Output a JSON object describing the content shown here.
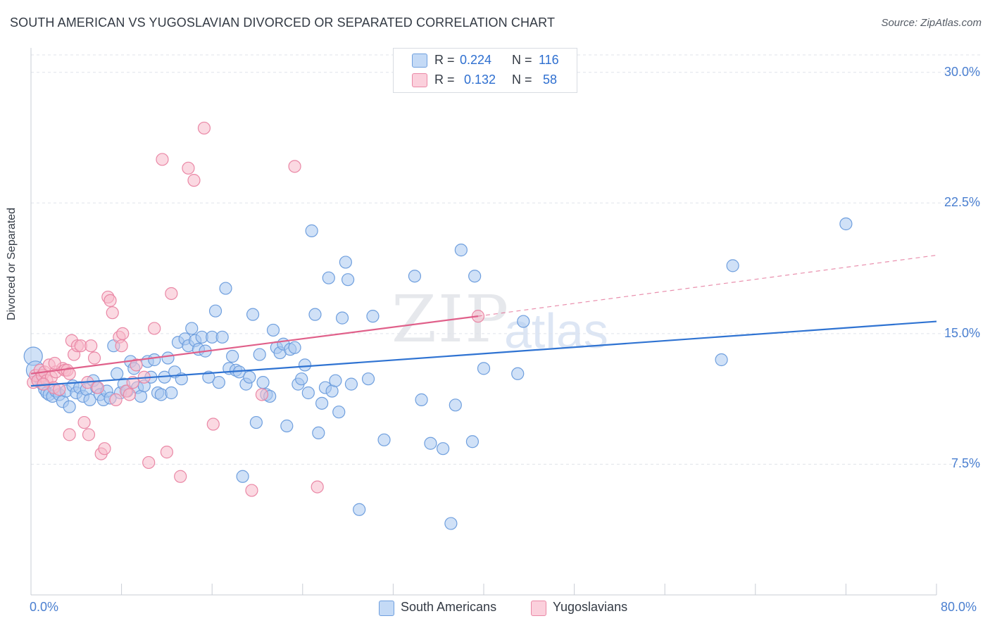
{
  "header": {
    "title": "SOUTH AMERICAN VS YUGOSLAVIAN DIVORCED OR SEPARATED CORRELATION CHART",
    "source": "Source: ZipAtlas.com"
  },
  "watermark": {
    "zip": "ZIP",
    "atlas": "atlas"
  },
  "colors": {
    "blue_fill": "#aac8f0",
    "blue_stroke": "#6f9fde",
    "blue_line": "#2f73d2",
    "pink_fill": "#f7b9cb",
    "pink_stroke": "#ea88a6",
    "pink_line": "#e0608a",
    "tick_text": "#4a7fd0",
    "grid": "#dfe3ea"
  },
  "legend": {
    "rows": [
      {
        "r_label": "R =",
        "r_value": "0.224",
        "n_label": "N =",
        "n_value": "116"
      },
      {
        "r_label": "R =",
        "r_value": "0.132",
        "n_label": "N =",
        "n_value": "58"
      }
    ],
    "bottom": [
      "South Americans",
      "Yugoslavians"
    ]
  },
  "chart_data": {
    "type": "scatter",
    "title": "SOUTH AMERICAN VS YUGOSLAVIAN DIVORCED OR SEPARATED CORRELATION CHART",
    "ylabel": "Divorced or Separated",
    "xlabel": "",
    "xlim": [
      0,
      80
    ],
    "ylim": [
      0,
      31
    ],
    "x_ticks": [
      "0.0%",
      "80.0%"
    ],
    "y_ticks": [
      {
        "value": 7.5,
        "label": "7.5%"
      },
      {
        "value": 15.0,
        "label": "15.0%"
      },
      {
        "value": 22.5,
        "label": "22.5%"
      },
      {
        "value": 30.0,
        "label": "30.0%"
      }
    ],
    "grid": "horizontal dashed",
    "legend_position": "top-center",
    "series": [
      {
        "name": "South Americans",
        "color": "#aac8f0",
        "r": 0.224,
        "n": 116,
        "trend": {
          "x": [
            0,
            80
          ],
          "y": [
            12.0,
            15.7
          ],
          "style": "solid"
        },
        "points": [
          [
            0.2,
            13.7
          ],
          [
            0.4,
            12.9
          ],
          [
            0.6,
            12.3
          ],
          [
            0.8,
            12.4
          ],
          [
            1.0,
            12.1
          ],
          [
            1.2,
            11.8
          ],
          [
            1.4,
            11.6
          ],
          [
            1.6,
            11.5
          ],
          [
            1.9,
            11.4
          ],
          [
            2.2,
            11.7
          ],
          [
            2.5,
            11.5
          ],
          [
            2.8,
            11.1
          ],
          [
            3.1,
            11.7
          ],
          [
            3.4,
            10.8
          ],
          [
            3.7,
            12.0
          ],
          [
            4.0,
            11.6
          ],
          [
            4.3,
            11.9
          ],
          [
            4.6,
            11.4
          ],
          [
            4.9,
            11.8
          ],
          [
            5.2,
            11.2
          ],
          [
            5.5,
            12.3
          ],
          [
            5.8,
            11.9
          ],
          [
            6.1,
            11.5
          ],
          [
            6.4,
            11.2
          ],
          [
            6.7,
            11.7
          ],
          [
            7.0,
            11.3
          ],
          [
            7.3,
            14.3
          ],
          [
            7.6,
            12.7
          ],
          [
            7.9,
            11.6
          ],
          [
            8.2,
            12.1
          ],
          [
            8.5,
            11.7
          ],
          [
            8.8,
            13.4
          ],
          [
            9.1,
            13.0
          ],
          [
            9.4,
            11.9
          ],
          [
            9.7,
            11.4
          ],
          [
            10.0,
            12.0
          ],
          [
            10.3,
            13.4
          ],
          [
            10.6,
            12.5
          ],
          [
            10.9,
            13.5
          ],
          [
            11.2,
            11.6
          ],
          [
            11.5,
            11.5
          ],
          [
            11.8,
            12.5
          ],
          [
            12.1,
            13.6
          ],
          [
            12.4,
            11.6
          ],
          [
            12.7,
            12.8
          ],
          [
            13.0,
            14.5
          ],
          [
            13.3,
            12.4
          ],
          [
            13.6,
            14.7
          ],
          [
            13.9,
            14.3
          ],
          [
            14.2,
            15.3
          ],
          [
            14.5,
            14.6
          ],
          [
            14.8,
            14.1
          ],
          [
            15.1,
            14.8
          ],
          [
            15.4,
            14.0
          ],
          [
            15.7,
            12.5
          ],
          [
            16.0,
            14.8
          ],
          [
            16.3,
            16.3
          ],
          [
            16.6,
            12.2
          ],
          [
            16.9,
            14.8
          ],
          [
            17.2,
            17.6
          ],
          [
            17.5,
            13.0
          ],
          [
            17.8,
            13.7
          ],
          [
            18.1,
            12.9
          ],
          [
            18.4,
            12.8
          ],
          [
            18.7,
            6.8
          ],
          [
            19.0,
            12.1
          ],
          [
            19.3,
            12.5
          ],
          [
            19.6,
            16.1
          ],
          [
            19.9,
            9.9
          ],
          [
            20.2,
            13.8
          ],
          [
            20.5,
            12.2
          ],
          [
            20.8,
            11.5
          ],
          [
            21.1,
            11.4
          ],
          [
            21.4,
            15.2
          ],
          [
            21.7,
            14.2
          ],
          [
            22.0,
            13.9
          ],
          [
            22.3,
            14.4
          ],
          [
            22.6,
            9.7
          ],
          [
            22.9,
            14.1
          ],
          [
            23.3,
            14.2
          ],
          [
            23.6,
            12.1
          ],
          [
            23.9,
            12.4
          ],
          [
            24.2,
            13.2
          ],
          [
            24.5,
            11.6
          ],
          [
            24.8,
            20.9
          ],
          [
            25.1,
            16.1
          ],
          [
            25.4,
            9.3
          ],
          [
            25.7,
            11.0
          ],
          [
            26.0,
            11.9
          ],
          [
            26.3,
            18.2
          ],
          [
            26.6,
            11.7
          ],
          [
            26.9,
            12.3
          ],
          [
            27.2,
            10.5
          ],
          [
            27.5,
            15.9
          ],
          [
            27.8,
            19.1
          ],
          [
            28.0,
            18.1
          ],
          [
            28.3,
            12.1
          ],
          [
            29.0,
            4.9
          ],
          [
            29.8,
            12.4
          ],
          [
            30.2,
            16.0
          ],
          [
            31.2,
            8.9
          ],
          [
            33.9,
            18.3
          ],
          [
            34.5,
            11.2
          ],
          [
            35.3,
            8.7
          ],
          [
            36.4,
            8.4
          ],
          [
            37.5,
            10.9
          ],
          [
            38.0,
            19.8
          ],
          [
            39.0,
            8.8
          ],
          [
            39.2,
            18.3
          ],
          [
            40.0,
            13.0
          ],
          [
            37.1,
            4.1
          ],
          [
            43.0,
            12.7
          ],
          [
            43.5,
            15.7
          ],
          [
            62.0,
            18.9
          ],
          [
            61.0,
            13.5
          ],
          [
            72.0,
            21.3
          ]
        ]
      },
      {
        "name": "Yugoslavians",
        "color": "#f7b9cb",
        "r": 0.132,
        "n": 58,
        "trend": {
          "x": [
            0,
            39.5,
            80
          ],
          "y": [
            12.7,
            16.0,
            19.5
          ],
          "style": "solid-then-dashed"
        },
        "points": [
          [
            0.2,
            12.2
          ],
          [
            0.4,
            12.6
          ],
          [
            0.6,
            12.3
          ],
          [
            0.8,
            12.9
          ],
          [
            1.0,
            12.6
          ],
          [
            1.2,
            12.8
          ],
          [
            1.4,
            12.3
          ],
          [
            1.6,
            13.2
          ],
          [
            1.8,
            12.5
          ],
          [
            2.0,
            11.9
          ],
          [
            2.2,
            12.8
          ],
          [
            2.5,
            11.8
          ],
          [
            2.8,
            13.0
          ],
          [
            3.0,
            12.9
          ],
          [
            3.2,
            12.9
          ],
          [
            3.4,
            12.7
          ],
          [
            3.6,
            14.6
          ],
          [
            3.8,
            13.8
          ],
          [
            4.1,
            14.3
          ],
          [
            4.4,
            14.3
          ],
          [
            4.7,
            9.9
          ],
          [
            5.0,
            12.2
          ],
          [
            5.3,
            14.3
          ],
          [
            5.6,
            13.6
          ],
          [
            5.9,
            11.9
          ],
          [
            6.2,
            8.1
          ],
          [
            6.5,
            8.4
          ],
          [
            6.8,
            17.1
          ],
          [
            7.0,
            16.9
          ],
          [
            7.2,
            16.2
          ],
          [
            7.5,
            11.2
          ],
          [
            7.8,
            14.8
          ],
          [
            8.1,
            15.0
          ],
          [
            8.4,
            11.7
          ],
          [
            8.7,
            11.5
          ],
          [
            9.0,
            12.2
          ],
          [
            9.3,
            13.2
          ],
          [
            3.4,
            9.2
          ],
          [
            5.1,
            9.2
          ],
          [
            10.0,
            12.5
          ],
          [
            10.4,
            7.6
          ],
          [
            10.9,
            15.3
          ],
          [
            11.6,
            25.0
          ],
          [
            12.0,
            8.2
          ],
          [
            12.4,
            17.3
          ],
          [
            13.2,
            6.8
          ],
          [
            13.9,
            24.5
          ],
          [
            14.4,
            23.8
          ],
          [
            15.3,
            26.8
          ],
          [
            16.1,
            9.8
          ],
          [
            19.5,
            6.0
          ],
          [
            20.4,
            11.5
          ],
          [
            23.3,
            24.6
          ],
          [
            25.3,
            6.2
          ],
          [
            39.5,
            16.0
          ],
          [
            1.1,
            12.1
          ],
          [
            2.1,
            13.3
          ],
          [
            8.0,
            14.3
          ]
        ]
      }
    ]
  }
}
